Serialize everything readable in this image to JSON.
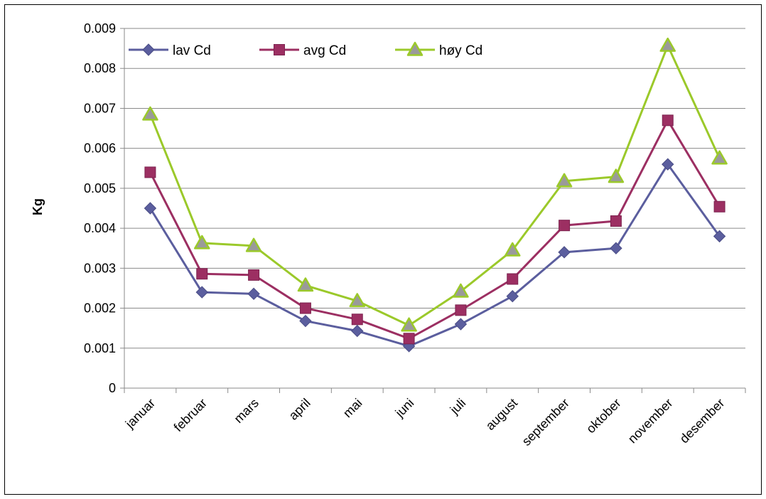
{
  "chart_data": {
    "type": "line",
    "title": "",
    "xlabel": "",
    "ylabel": "Kg",
    "ylim": [
      0,
      0.009
    ],
    "yticks": [
      "0",
      "0.001",
      "0.002",
      "0.003",
      "0.004",
      "0.005",
      "0.006",
      "0.007",
      "0.008",
      "0.009"
    ],
    "grid": "horizontal",
    "legend_position": "top-left",
    "categories": [
      "januar",
      "februar",
      "mars",
      "april",
      "mai",
      "juni",
      "juli",
      "august",
      "september",
      "oktober",
      "november",
      "desember"
    ],
    "series": [
      {
        "name": "lav Cd",
        "color": "#5B5E9E",
        "marker": "diamond",
        "values": [
          0.0045,
          0.0024,
          0.00236,
          0.00168,
          0.00143,
          0.00105,
          0.0016,
          0.0023,
          0.0034,
          0.0035,
          0.0056,
          0.0038
        ]
      },
      {
        "name": "avg Cd",
        "color": "#9C2F62",
        "marker": "square",
        "values": [
          0.0054,
          0.00286,
          0.00283,
          0.002,
          0.00172,
          0.00124,
          0.00195,
          0.00273,
          0.00407,
          0.00418,
          0.0067,
          0.00454
        ]
      },
      {
        "name": "høy Cd",
        "color": "#9BC92A",
        "marker": "triangle",
        "values": [
          0.00685,
          0.00363,
          0.00356,
          0.00257,
          0.00218,
          0.00157,
          0.00242,
          0.00345,
          0.00518,
          0.00529,
          0.00857,
          0.00575
        ]
      }
    ]
  }
}
